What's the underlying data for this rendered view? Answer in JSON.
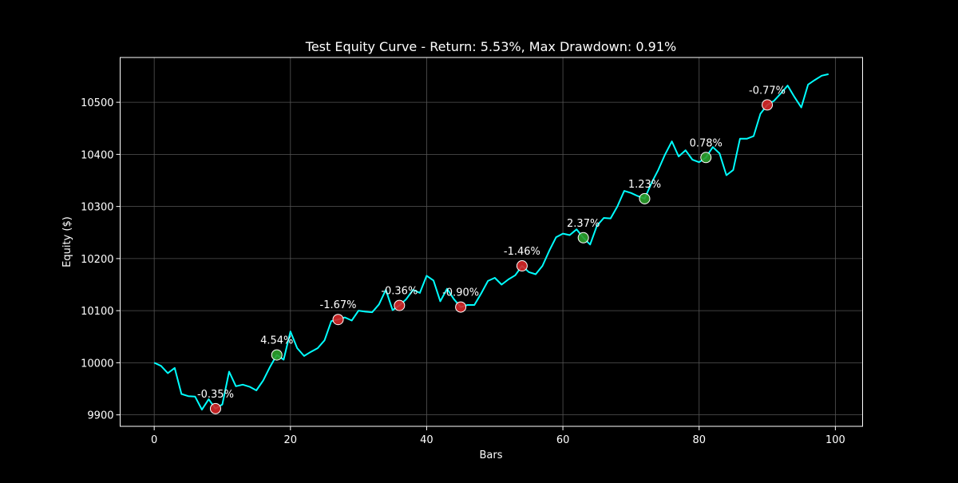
{
  "chart_data": {
    "type": "line",
    "title": "Test Equity Curve - Return: 5.53%, Max Drawdown: 0.91%",
    "xlabel": "Bars",
    "ylabel": "Equity ($)",
    "xlim": [
      -5,
      104
    ],
    "ylim": [
      9878,
      10586
    ],
    "xticks": [
      0,
      20,
      40,
      60,
      80,
      100
    ],
    "yticks": [
      9900,
      10000,
      10100,
      10200,
      10300,
      10400,
      10500
    ],
    "grid": true,
    "series": [
      {
        "name": "",
        "color": "#00ffff",
        "x": [
          0,
          1,
          2,
          3,
          4,
          5,
          6,
          7,
          8,
          9,
          10,
          11,
          12,
          13,
          14,
          15,
          16,
          17,
          18,
          19,
          20,
          21,
          22,
          23,
          24,
          25,
          26,
          27,
          28,
          29,
          30,
          31,
          32,
          33,
          34,
          35,
          36,
          37,
          38,
          39,
          40,
          41,
          42,
          43,
          44,
          45,
          46,
          47,
          48,
          49,
          50,
          51,
          52,
          53,
          54,
          55,
          56,
          57,
          58,
          59,
          60,
          61,
          62,
          63,
          64,
          65,
          66,
          67,
          68,
          69,
          70,
          71,
          72,
          73,
          74,
          75,
          76,
          77,
          78,
          79,
          80,
          81,
          82,
          83,
          84,
          85,
          86,
          87,
          88,
          89,
          90,
          91,
          92,
          93,
          94,
          95,
          96,
          97,
          98,
          99
        ],
        "y": [
          10000,
          9994,
          9980,
          9990,
          9940,
          9936,
          9935,
          9910,
          9930,
          9912,
          9920,
          9983,
          9955,
          9958,
          9954,
          9947,
          9966,
          9992,
          10015,
          10006,
          10060,
          10028,
          10013,
          10021,
          10028,
          10043,
          10080,
          10083,
          10087,
          10081,
          10100,
          10098,
          10097,
          10112,
          10140,
          10101,
          10110,
          10122,
          10140,
          10134,
          10167,
          10158,
          10118,
          10142,
          10122,
          10107,
          10111,
          10111,
          10133,
          10157,
          10163,
          10150,
          10160,
          10168,
          10186,
          10174,
          10170,
          10186,
          10215,
          10241,
          10248,
          10245,
          10256,
          10240,
          10227,
          10263,
          10278,
          10277,
          10300,
          10330,
          10326,
          10320,
          10315,
          10345,
          10370,
          10400,
          10425,
          10396,
          10408,
          10390,
          10385,
          10394,
          10414,
          10402,
          10360,
          10370,
          10430,
          10430,
          10435,
          10478,
          10495,
          10503,
          10517,
          10532,
          10510,
          10490,
          10534,
          10543,
          10551,
          10554
        ]
      }
    ],
    "markers": [
      {
        "x": 9,
        "y": 9912,
        "label": "-0.35%",
        "type": "loss",
        "color": "#d62728"
      },
      {
        "x": 18,
        "y": 10015,
        "label": "4.54%",
        "type": "win",
        "color": "#2ca02c"
      },
      {
        "x": 27,
        "y": 10083,
        "label": "-1.67%",
        "type": "loss",
        "color": "#d62728"
      },
      {
        "x": 36,
        "y": 10110,
        "label": "-0.36%",
        "type": "loss",
        "color": "#d62728"
      },
      {
        "x": 45,
        "y": 10107,
        "label": "-0.90%",
        "type": "loss",
        "color": "#d62728"
      },
      {
        "x": 54,
        "y": 10186,
        "label": "-1.46%",
        "type": "loss",
        "color": "#d62728"
      },
      {
        "x": 63,
        "y": 10240,
        "label": "2.37%",
        "type": "win",
        "color": "#2ca02c"
      },
      {
        "x": 72,
        "y": 10315,
        "label": "1.23%",
        "type": "win",
        "color": "#2ca02c"
      },
      {
        "x": 81,
        "y": 10394,
        "label": "0.78%",
        "type": "win",
        "color": "#2ca02c"
      },
      {
        "x": 90,
        "y": 10495,
        "label": "-0.77%",
        "type": "loss",
        "color": "#d62728"
      }
    ]
  }
}
